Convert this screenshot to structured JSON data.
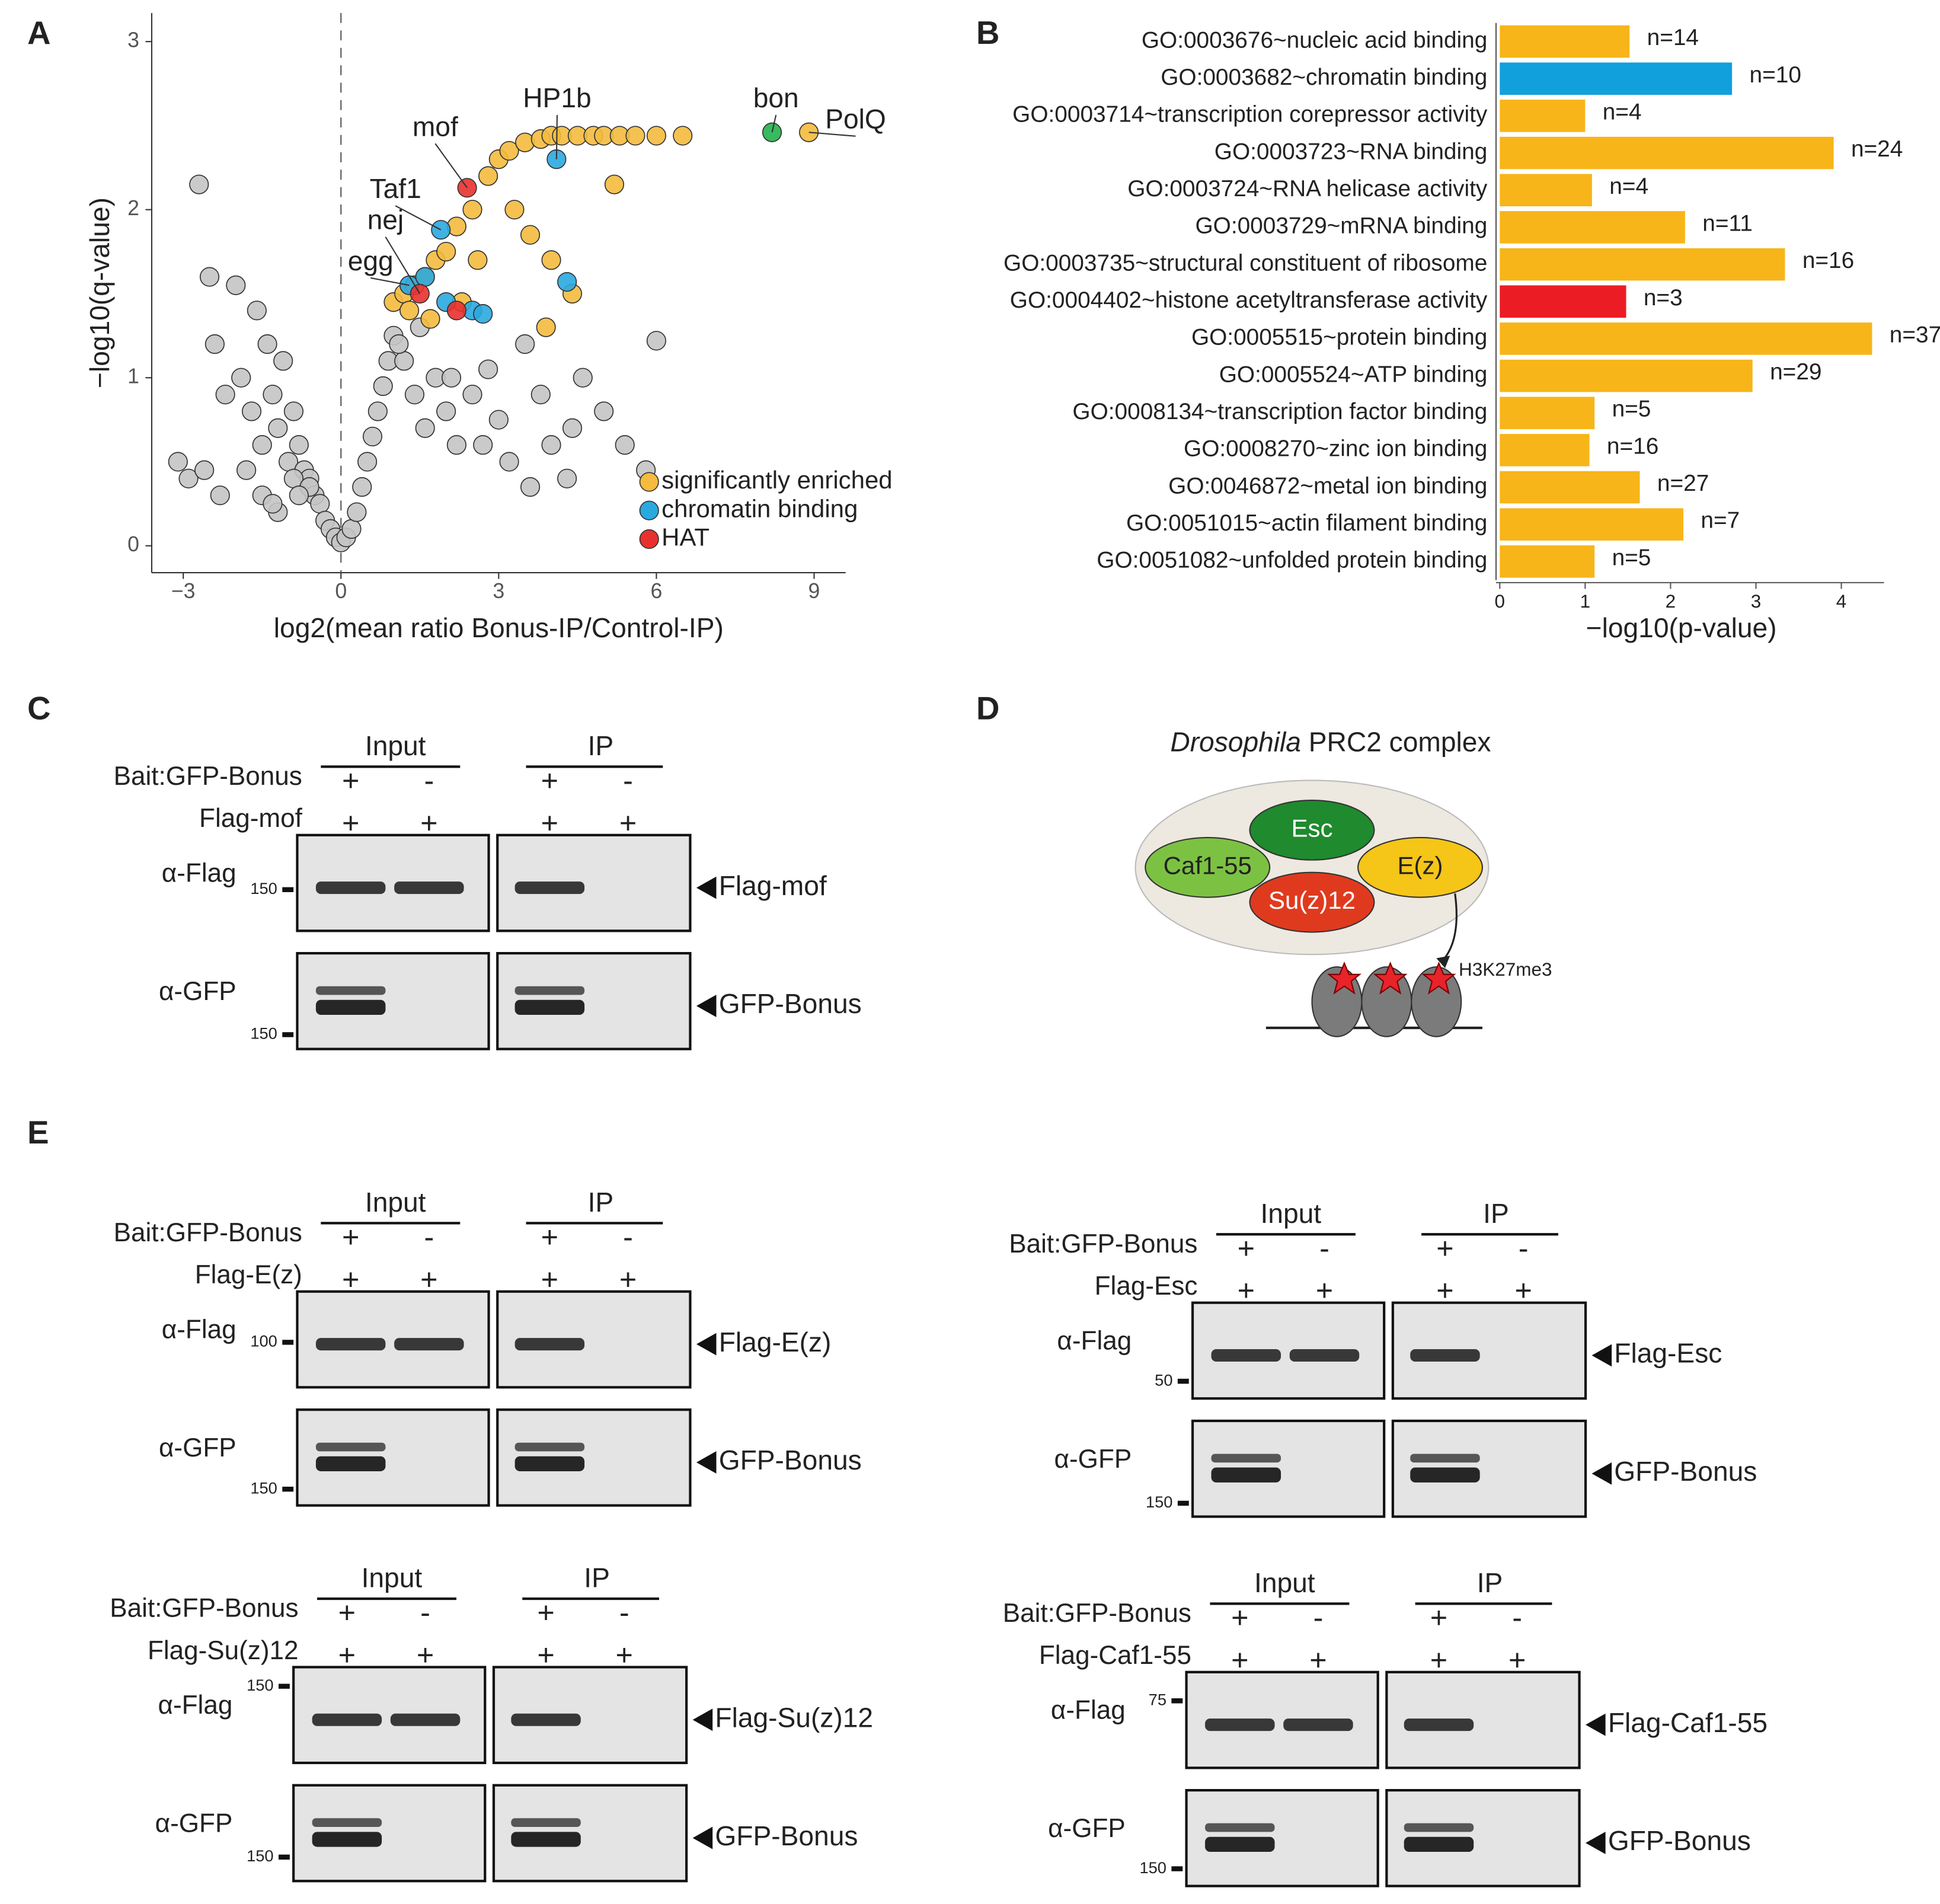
{
  "chart_data": [
    {
      "type": "scatter",
      "panel_label": "A",
      "x_label": "log2(mean ratio Bonus-IP/Control-IP)",
      "y_label": "−log10(q-value)",
      "xlim": [
        -3.6,
        9.6
      ],
      "ylim": [
        -0.16,
        3.17
      ],
      "xticks": [
        {
          "value": -3,
          "label": "−3"
        },
        0,
        3,
        6,
        9
      ],
      "yticks": [
        0,
        1,
        2,
        3
      ],
      "legend": "bottom-right",
      "series": [
        {
          "color": "#c4c4c4",
          "x": [
            -2.7,
            -2.5,
            -2.4,
            -2.2,
            -2.0,
            -1.9,
            -1.7,
            -1.6,
            -1.5,
            -1.4,
            -1.3,
            -1.2,
            -1.1,
            -1.0,
            -0.9,
            -0.8,
            -0.7,
            -0.6,
            -0.5,
            -0.4,
            -0.3,
            -0.2,
            -0.1,
            0,
            0.1,
            0.2,
            0.3,
            0.4,
            0.5,
            0.6,
            0.7,
            0.8,
            0.9,
            1.0,
            1.2,
            1.4,
            1.6,
            1.8,
            2.0,
            2.2,
            2.5,
            2.8,
            3.0,
            3.2,
            3.5,
            3.8,
            4.0,
            4.3,
            4.6,
            5.0,
            5.4,
            5.8,
            6.0,
            -1.8,
            -1.5,
            -1.2,
            -0.9,
            -0.6,
            -2.9,
            -3.1,
            -2.6,
            -2.3,
            -1.3,
            -0.8,
            1.1,
            1.5,
            2.1,
            2.7,
            3.6,
            4.4
          ],
          "values": [
            2.15,
            1.6,
            1.2,
            0.9,
            1.55,
            1.0,
            0.8,
            1.4,
            0.6,
            1.2,
            0.9,
            0.7,
            1.1,
            0.5,
            0.8,
            0.6,
            0.45,
            0.4,
            0.3,
            0.25,
            0.15,
            0.1,
            0.05,
            0.02,
            0.05,
            0.1,
            0.2,
            0.35,
            0.5,
            0.65,
            0.8,
            0.95,
            1.1,
            1.25,
            1.1,
            0.9,
            0.7,
            1.0,
            0.8,
            0.6,
            0.9,
            1.05,
            0.75,
            0.5,
            1.2,
            0.9,
            0.6,
            0.4,
            1.0,
            0.8,
            0.6,
            0.45,
            1.22,
            0.45,
            0.3,
            0.2,
            0.4,
            0.35,
            0.4,
            0.5,
            0.45,
            0.3,
            0.25,
            0.3,
            1.2,
            1.3,
            1.0,
            0.6,
            0.35,
            0.7
          ]
        },
        {
          "name": "significantly enriched",
          "color": "#f4bb3e",
          "x": [
            1.0,
            1.2,
            1.4,
            1.6,
            1.8,
            2.0,
            2.2,
            2.5,
            2.8,
            3.0,
            3.2,
            3.5,
            3.8,
            4.0,
            4.2,
            4.5,
            4.8,
            5.0,
            5.3,
            5.6,
            6.0,
            6.5,
            3.3,
            3.6,
            4.0,
            4.4,
            5.2,
            1.3,
            1.7,
            2.3,
            2.6,
            3.9,
            8.9
          ],
          "values": [
            1.45,
            1.5,
            1.55,
            1.6,
            1.7,
            1.75,
            1.9,
            2.0,
            2.2,
            2.3,
            2.35,
            2.4,
            2.42,
            2.44,
            2.44,
            2.44,
            2.44,
            2.44,
            2.44,
            2.44,
            2.44,
            2.44,
            2.0,
            1.85,
            1.7,
            1.5,
            2.15,
            1.4,
            1.35,
            1.45,
            1.7,
            1.3,
            2.46
          ]
        },
        {
          "name": "chromatin binding",
          "color": "#2aa9df",
          "x": [
            4.1,
            1.9,
            1.3,
            1.6,
            2.0,
            2.5,
            2.7,
            4.3
          ],
          "values": [
            2.3,
            1.88,
            1.55,
            1.6,
            1.45,
            1.4,
            1.38,
            1.57
          ]
        },
        {
          "name": "HAT",
          "color": "#e8312f",
          "x": [
            2.4,
            1.5,
            2.2
          ],
          "values": [
            2.13,
            1.5,
            1.4
          ]
        },
        {
          "color": "#22b24c",
          "x": [
            8.2
          ],
          "values": [
            2.46
          ]
        }
      ],
      "annotations": [
        {
          "text": "HP1b",
          "x": 4.1,
          "y": 2.3
        },
        {
          "text": "mof",
          "x": 2.4,
          "y": 2.13
        },
        {
          "text": "Taf1",
          "x": 1.9,
          "y": 1.88
        },
        {
          "text": "nej",
          "x": 1.5,
          "y": 1.5
        },
        {
          "text": "egg",
          "x": 1.3,
          "y": 1.55
        },
        {
          "text": "bon",
          "x": 8.2,
          "y": 2.46
        },
        {
          "text": "PolQ",
          "x": 8.9,
          "y": 2.46
        }
      ]
    },
    {
      "type": "hbar",
      "panel_label": "B",
      "x_label": "−log10(p-value)",
      "xlim": [
        0,
        4.5
      ],
      "xticks": [
        0,
        1,
        2,
        3,
        4
      ],
      "categories": [
        "GO:0003676~nucleic acid binding",
        "GO:0003682~chromatin binding",
        "GO:0003714~transcription corepressor activity",
        "GO:0003723~RNA binding",
        "GO:0003724~RNA helicase activity",
        "GO:0003729~mRNA binding",
        "GO:0003735~structural constituent of ribosome",
        "GO:0004402~histone acetyltransferase activity",
        "GO:0005515~protein binding",
        "GO:0005524~ATP binding",
        "GO:0008134~transcription factor binding",
        "GO:0008270~zinc ion binding",
        "GO:0046872~metal ion binding",
        "GO:0051015~actin filament binding",
        "GO:0051082~unfolded protein binding"
      ],
      "values": [
        1.52,
        2.72,
        1.0,
        3.91,
        1.08,
        2.17,
        3.34,
        1.48,
        4.36,
        2.96,
        1.11,
        1.05,
        1.64,
        2.15,
        1.11
      ],
      "colors": [
        "#f7b519",
        "#12a0dc",
        "#f7b519",
        "#f7b519",
        "#f7b519",
        "#f7b519",
        "#f7b519",
        "#ec1c24",
        "#f7b519",
        "#f7b519",
        "#f7b519",
        "#f7b519",
        "#f7b519",
        "#f7b519",
        "#f7b519"
      ],
      "count_labels": [
        "n=14",
        "n=10",
        "n=4",
        "n=24",
        "n=4",
        "n=11",
        "n=16",
        "n=3",
        "n=37",
        "n=29",
        "n=5",
        "n=16",
        "n=27",
        "n=7",
        "n=5"
      ]
    }
  ],
  "panel_c": {
    "label": "C",
    "blot": {
      "headers": [
        "Input",
        "IP"
      ],
      "rows": [
        {
          "label": "Bait:GFP-Bonus",
          "signs": [
            "+",
            "-",
            "+",
            "-"
          ]
        },
        {
          "label": "Flag-mof",
          "signs": [
            "+",
            "+",
            "+",
            "+"
          ]
        }
      ],
      "antibodies": [
        {
          "label": "α-Flag",
          "marker": "150",
          "target": "Flag-mof"
        },
        {
          "label": "α-GFP",
          "marker": "150",
          "target": "GFP-Bonus"
        }
      ]
    }
  },
  "panel_d": {
    "label": "D",
    "title": {
      "italic": "Drosophila",
      "rest": "PRC2 complex"
    },
    "nodes": [
      "Esc",
      "Caf1-55",
      "Su(z)12",
      "E(z)"
    ],
    "mark": "H3K27me3"
  },
  "panel_e": {
    "label": "E",
    "blots": [
      {
        "headers": [
          "Input",
          "IP"
        ],
        "rows": [
          {
            "label": "Bait:GFP-Bonus",
            "signs": [
              "+",
              "-",
              "+",
              "-"
            ]
          },
          {
            "label": "Flag-E(z)",
            "signs": [
              "+",
              "+",
              "+",
              "+"
            ]
          }
        ],
        "antibodies": [
          {
            "label": "α-Flag",
            "marker": "100",
            "target": "Flag-E(z)"
          },
          {
            "label": "α-GFP",
            "marker": "150",
            "target": "GFP-Bonus"
          }
        ]
      },
      {
        "headers": [
          "Input",
          "IP"
        ],
        "rows": [
          {
            "label": "Bait:GFP-Bonus",
            "signs": [
              "+",
              "-",
              "+",
              "-"
            ]
          },
          {
            "label": "Flag-Esc",
            "signs": [
              "+",
              "+",
              "+",
              "+"
            ]
          }
        ],
        "antibodies": [
          {
            "label": "α-Flag",
            "marker": "50",
            "target": "Flag-Esc"
          },
          {
            "label": "α-GFP",
            "marker": "150",
            "target": "GFP-Bonus"
          }
        ]
      },
      {
        "headers": [
          "Input",
          "IP"
        ],
        "rows": [
          {
            "label": "Bait:GFP-Bonus",
            "signs": [
              "+",
              "-",
              "+",
              "-"
            ]
          },
          {
            "label": "Flag-Su(z)12",
            "signs": [
              "+",
              "+",
              "+",
              "+"
            ]
          }
        ],
        "antibodies": [
          {
            "label": "α-Flag",
            "marker": "150",
            "target": "Flag-Su(z)12"
          },
          {
            "label": "α-GFP",
            "marker": "150",
            "target": "GFP-Bonus"
          }
        ]
      },
      {
        "headers": [
          "Input",
          "IP"
        ],
        "rows": [
          {
            "label": "Bait:GFP-Bonus",
            "signs": [
              "+",
              "-",
              "+",
              "-"
            ]
          },
          {
            "label": "Flag-Caf1-55",
            "signs": [
              "+",
              "+",
              "+",
              "+"
            ]
          }
        ],
        "antibodies": [
          {
            "label": "α-Flag",
            "marker": "75",
            "target": "Flag-Caf1-55"
          },
          {
            "label": "α-GFP",
            "marker": "150",
            "target": "GFP-Bonus"
          }
        ]
      }
    ]
  }
}
